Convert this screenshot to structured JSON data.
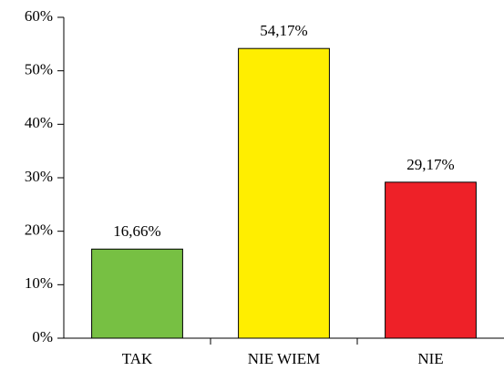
{
  "chart_data": {
    "type": "bar",
    "categories": [
      "TAK",
      "NIE WIEM",
      "NIE"
    ],
    "values": [
      16.66,
      54.17,
      29.17
    ],
    "value_labels": [
      "16,66%",
      "54,17%",
      "29,17%"
    ],
    "colors": [
      "#77c043",
      "#ffee00",
      "#ee2128"
    ],
    "ylim": [
      0,
      60
    ],
    "yticks": [
      {
        "value": 0,
        "label": "0%"
      },
      {
        "value": 10,
        "label": "10%"
      },
      {
        "value": 20,
        "label": "20%"
      },
      {
        "value": 30,
        "label": "30%"
      },
      {
        "value": 40,
        "label": "40%"
      },
      {
        "value": 50,
        "label": "50%"
      },
      {
        "value": 60,
        "label": "60%"
      }
    ],
    "grid": false
  }
}
